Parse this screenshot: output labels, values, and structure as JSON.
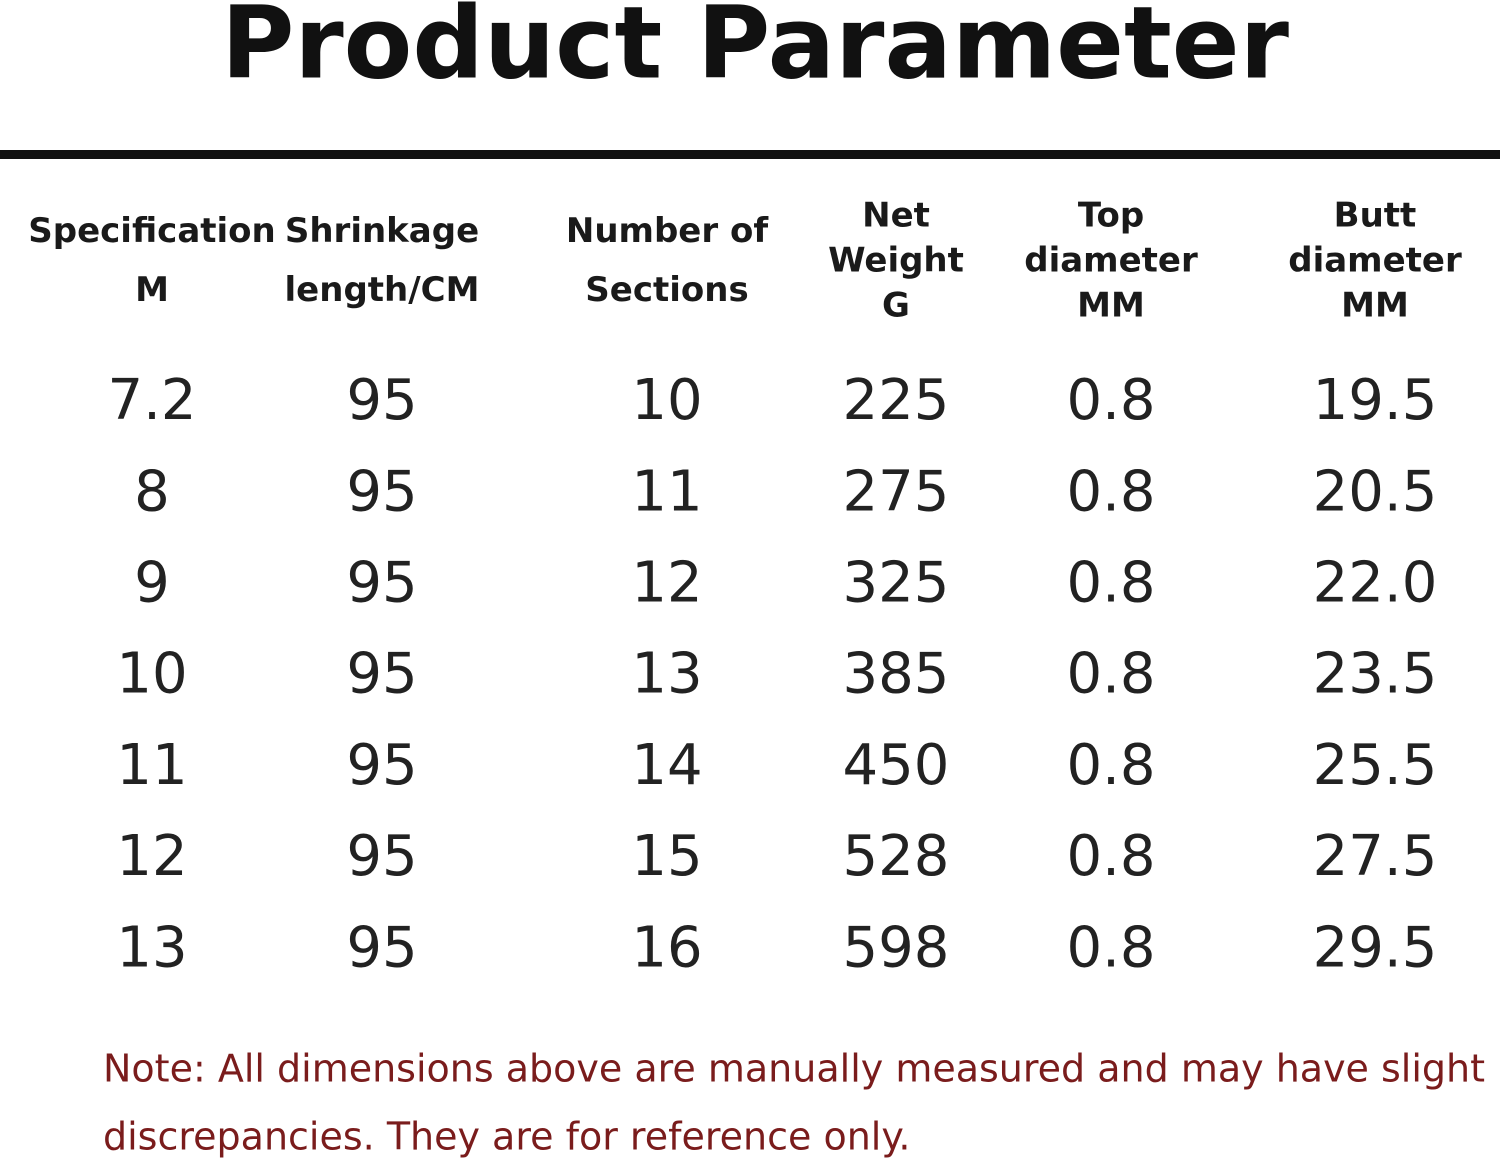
{
  "title": "Product Parameter",
  "table": {
    "headers": [
      [
        "Specification",
        "M"
      ],
      [
        "Shrinkage",
        "length/CM"
      ],
      [
        "Number of",
        "Sections"
      ],
      [
        "Net",
        "Weight",
        "G"
      ],
      [
        "Top",
        "diameter",
        "MM"
      ],
      [
        "Butt",
        "diameter",
        "MM"
      ]
    ],
    "rows": [
      [
        "7.2",
        "95",
        "10",
        "225",
        "0.8",
        "19.5"
      ],
      [
        "8",
        "95",
        "11",
        "275",
        "0.8",
        "20.5"
      ],
      [
        "9",
        "95",
        "12",
        "325",
        "0.8",
        "22.0"
      ],
      [
        "10",
        "95",
        "13",
        "385",
        "0.8",
        "23.5"
      ],
      [
        "11",
        "95",
        "14",
        "450",
        "0.8",
        "25.5"
      ],
      [
        "12",
        "95",
        "15",
        "528",
        "0.8",
        "27.5"
      ],
      [
        "13",
        "95",
        "16",
        "598",
        "0.8",
        "29.5"
      ]
    ]
  },
  "note": [
    "Note: All dimensions above are manually measured and may have slight",
    "discrepancies. They are for reference only."
  ]
}
